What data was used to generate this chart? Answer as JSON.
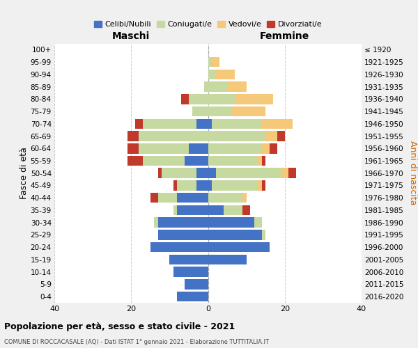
{
  "age_groups": [
    "0-4",
    "5-9",
    "10-14",
    "15-19",
    "20-24",
    "25-29",
    "30-34",
    "35-39",
    "40-44",
    "45-49",
    "50-54",
    "55-59",
    "60-64",
    "65-69",
    "70-74",
    "75-79",
    "80-84",
    "85-89",
    "90-94",
    "95-99",
    "100+"
  ],
  "birth_years": [
    "2016-2020",
    "2011-2015",
    "2006-2010",
    "2001-2005",
    "1996-2000",
    "1991-1995",
    "1986-1990",
    "1981-1985",
    "1976-1980",
    "1971-1975",
    "1966-1970",
    "1961-1965",
    "1956-1960",
    "1951-1955",
    "1946-1950",
    "1941-1945",
    "1936-1940",
    "1931-1935",
    "1926-1930",
    "1921-1925",
    "≤ 1920"
  ],
  "colors": {
    "celibe": "#4472c4",
    "coniugato": "#c5d9a0",
    "vedovo": "#f5c87a",
    "divorziato": "#c0392b"
  },
  "maschi": {
    "celibe": [
      8,
      6,
      9,
      10,
      15,
      13,
      13,
      8,
      8,
      3,
      3,
      6,
      5,
      0,
      3,
      0,
      0,
      0,
      0,
      0,
      0
    ],
    "coniugato": [
      0,
      0,
      0,
      0,
      0,
      0,
      1,
      1,
      5,
      5,
      9,
      11,
      13,
      18,
      14,
      4,
      5,
      1,
      0,
      0,
      0
    ],
    "vedovo": [
      0,
      0,
      0,
      0,
      0,
      0,
      0,
      0,
      0,
      0,
      0,
      0,
      0,
      0,
      0,
      0,
      0,
      0,
      0,
      0,
      0
    ],
    "divorziato": [
      0,
      0,
      0,
      0,
      0,
      0,
      0,
      0,
      2,
      1,
      1,
      4,
      3,
      3,
      2,
      0,
      2,
      0,
      0,
      0,
      0
    ]
  },
  "femmine": {
    "nubile": [
      0,
      0,
      0,
      10,
      16,
      14,
      12,
      4,
      0,
      1,
      2,
      0,
      0,
      0,
      1,
      0,
      0,
      0,
      0,
      0,
      0
    ],
    "coniugato": [
      0,
      0,
      0,
      0,
      0,
      1,
      2,
      5,
      9,
      12,
      17,
      13,
      14,
      15,
      13,
      6,
      7,
      5,
      2,
      1,
      0
    ],
    "vedovo": [
      0,
      0,
      0,
      0,
      0,
      0,
      0,
      0,
      1,
      1,
      2,
      1,
      2,
      3,
      8,
      9,
      10,
      5,
      5,
      2,
      0
    ],
    "divorziato": [
      0,
      0,
      0,
      0,
      0,
      0,
      0,
      2,
      0,
      1,
      2,
      1,
      2,
      2,
      0,
      0,
      0,
      0,
      0,
      0,
      0
    ]
  },
  "xlim": 40,
  "title_main": "Popolazione per età, sesso e stato civile - 2021",
  "title_sub": "COMUNE DI ROCCACASALE (AQ) - Dati ISTAT 1° gennaio 2021 - Elaborazione TUTTITALIA.IT",
  "ylabel_left": "Fasce di età",
  "ylabel_right": "Anni di nascita",
  "xlabel_maschi": "Maschi",
  "xlabel_femmine": "Femmine",
  "legend_labels": [
    "Celibi/Nubili",
    "Coniugati/e",
    "Vedovi/e",
    "Divorziati/e"
  ],
  "bg_color": "#f0f0f0",
  "plot_bg_color": "#ffffff"
}
